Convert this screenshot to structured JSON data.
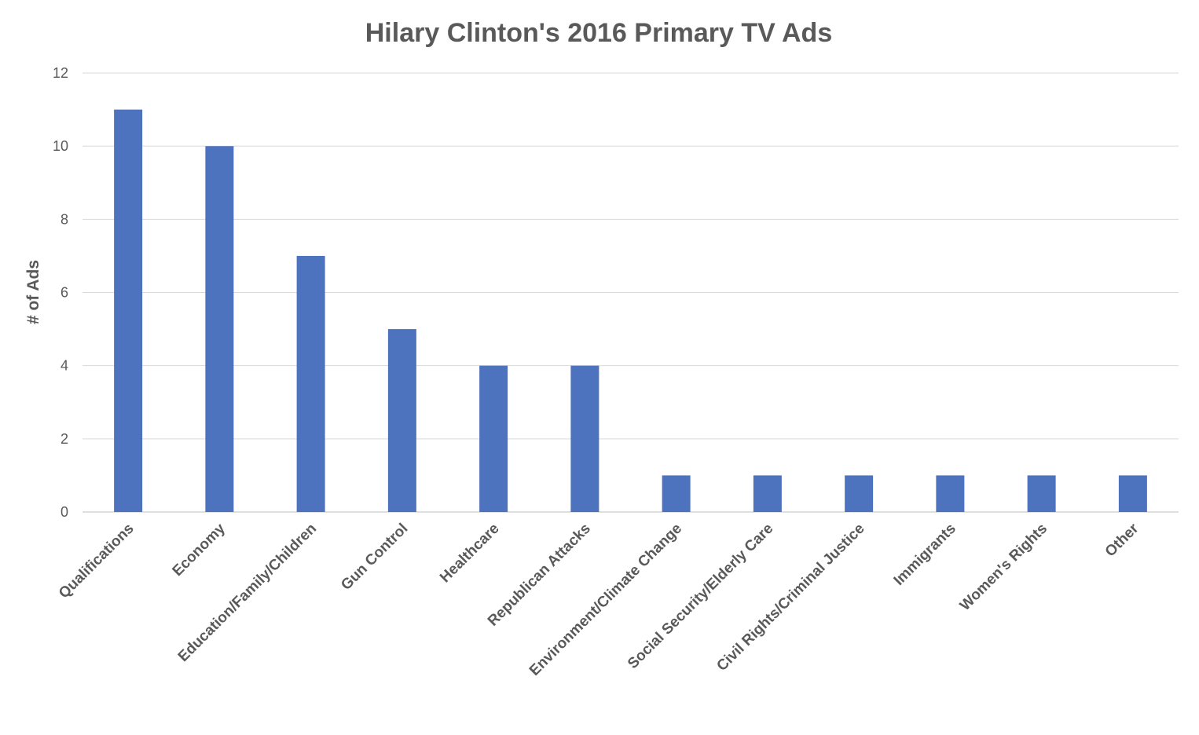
{
  "chart_data": {
    "type": "bar",
    "title": "Hilary Clinton's 2016 Primary TV Ads",
    "xlabel": "",
    "ylabel": "# of Ads",
    "ylim": [
      0,
      12
    ],
    "yticks": [
      0,
      2,
      4,
      6,
      8,
      10,
      12
    ],
    "grid": true,
    "legend": "none",
    "bar_color": "#4e73be",
    "categories": [
      "Qualifications",
      "Economy",
      "Education/Family/Children",
      "Gun Control",
      "Healthcare",
      "Republican Attacks",
      "Environment/Climate Change",
      "Social Security/Elderly Care",
      "Civil Rights/Criminal Justice",
      "Immigrants",
      "Women's Rights",
      "Other"
    ],
    "values": [
      11,
      10,
      7,
      5,
      4,
      4,
      1,
      1,
      1,
      1,
      1,
      1
    ]
  }
}
